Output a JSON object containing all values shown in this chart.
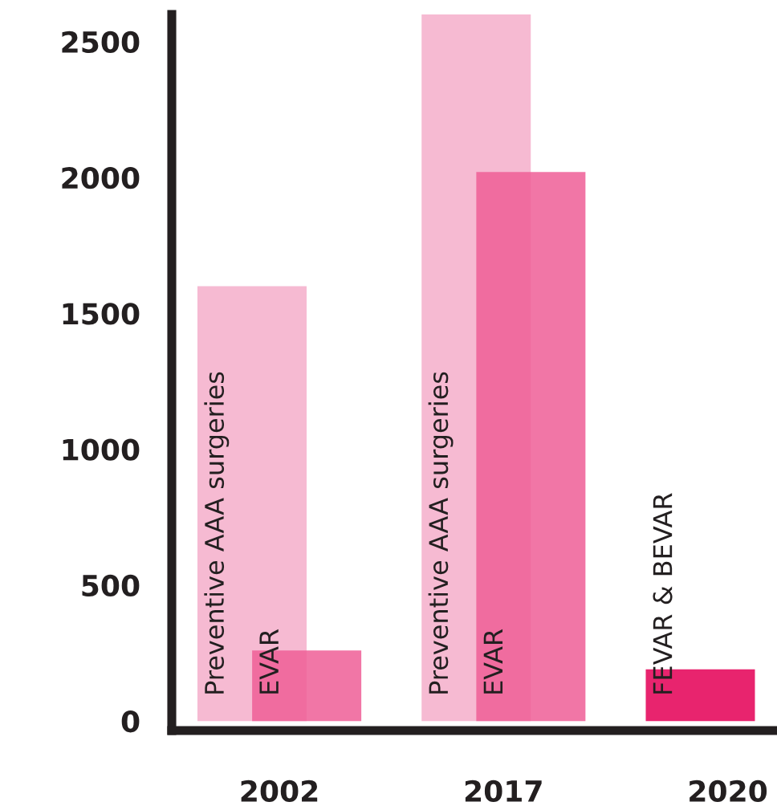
{
  "chart_data": {
    "type": "bar",
    "categories": [
      "2002",
      "2017",
      "2020"
    ],
    "series": [
      {
        "name": "Preventive AAA surgeries",
        "color": "#f6bad2",
        "values": [
          1600,
          2600,
          null
        ]
      },
      {
        "name": "EVAR",
        "color": "#ef5e96",
        "values": [
          260,
          2020,
          null
        ]
      },
      {
        "name": "FEVAR & BEVAR",
        "color": "#e8246e",
        "values": [
          null,
          null,
          190
        ]
      }
    ],
    "ylim": [
      -35,
      2600
    ],
    "yticks": [
      0,
      500,
      1000,
      1500,
      2000,
      2500
    ],
    "grid": false,
    "legend": false
  }
}
